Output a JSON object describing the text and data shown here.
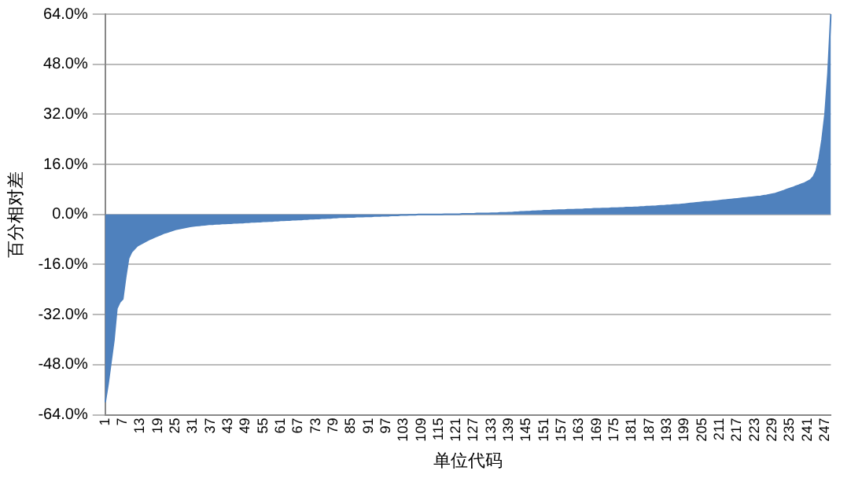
{
  "chart_data": {
    "type": "area",
    "xlabel": "单位代码",
    "ylabel": "百分相对差",
    "categories": [
      "1",
      null,
      null,
      null,
      null,
      null,
      "7",
      null,
      null,
      null,
      null,
      null,
      "13",
      null,
      null,
      null,
      null,
      null,
      "19",
      null,
      null,
      null,
      null,
      null,
      "25",
      null,
      null,
      null,
      null,
      null,
      "31",
      null,
      null,
      null,
      null,
      null,
      "37",
      null,
      null,
      null,
      null,
      null,
      "43",
      null,
      null,
      null,
      null,
      null,
      "49",
      null,
      null,
      null,
      null,
      null,
      "55",
      null,
      null,
      null,
      null,
      null,
      "61",
      null,
      null,
      null,
      null,
      null,
      "67",
      null,
      null,
      null,
      null,
      null,
      "73",
      null,
      null,
      null,
      null,
      null,
      "79",
      null,
      null,
      null,
      null,
      null,
      "85",
      null,
      null,
      null,
      null,
      null,
      "91",
      null,
      null,
      null,
      null,
      null,
      "97",
      null,
      null,
      null,
      null,
      null,
      "103",
      null,
      null,
      null,
      null,
      null,
      "109",
      null,
      null,
      null,
      null,
      null,
      "115",
      null,
      null,
      null,
      null,
      null,
      "121",
      null,
      null,
      null,
      null,
      null,
      "127",
      null,
      null,
      null,
      null,
      null,
      "133",
      null,
      null,
      null,
      null,
      null,
      "139",
      null,
      null,
      null,
      null,
      null,
      "145",
      null,
      null,
      null,
      null,
      null,
      "151",
      null,
      null,
      null,
      null,
      null,
      "157",
      null,
      null,
      null,
      null,
      null,
      "163",
      null,
      null,
      null,
      null,
      null,
      "169",
      null,
      null,
      null,
      null,
      null,
      "175",
      null,
      null,
      null,
      null,
      null,
      "181",
      null,
      null,
      null,
      null,
      null,
      "187",
      null,
      null,
      null,
      null,
      null,
      "193",
      null,
      null,
      null,
      null,
      null,
      "199",
      null,
      null,
      null,
      null,
      null,
      "205",
      null,
      null,
      null,
      null,
      null,
      "211",
      null,
      null,
      null,
      null,
      null,
      "217",
      null,
      null,
      null,
      null,
      null,
      "223",
      null,
      null,
      null,
      null,
      null,
      "229",
      null,
      null,
      null,
      null,
      null,
      "235",
      null,
      null,
      null,
      null,
      null,
      "241",
      null,
      null,
      null,
      null,
      null,
      "247",
      null,
      null
    ],
    "series": [
      {
        "color": "#4f81bd",
        "values": [
          -60,
          -54,
          -47,
          -40,
          -30,
          -28,
          -27,
          -20,
          -14,
          -12,
          -11,
          -10,
          -9.5,
          -9,
          -8.5,
          -8,
          -7.6,
          -7.2,
          -6.8,
          -6.4,
          -6,
          -5.7,
          -5.4,
          -5.1,
          -4.8,
          -4.6,
          -4.4,
          -4.2,
          -4,
          -3.8,
          -3.7,
          -3.6,
          -3.5,
          -3.4,
          -3.3,
          -3.2,
          -3.1,
          -3.1,
          -3,
          -3,
          -2.9,
          -2.9,
          -2.8,
          -2.8,
          -2.7,
          -2.7,
          -2.6,
          -2.6,
          -2.5,
          -2.5,
          -2.4,
          -2.4,
          -2.3,
          -2.3,
          -2.2,
          -2.2,
          -2.1,
          -2.1,
          -2,
          -2,
          -1.9,
          -1.9,
          -1.8,
          -1.8,
          -1.7,
          -1.7,
          -1.6,
          -1.6,
          -1.5,
          -1.5,
          -1.4,
          -1.4,
          -1.3,
          -1.3,
          -1.2,
          -1.2,
          -1.1,
          -1.1,
          -1,
          -1,
          -0.9,
          -0.9,
          -0.9,
          -0.8,
          -0.8,
          -0.8,
          -0.7,
          -0.7,
          -0.7,
          -0.6,
          -0.6,
          -0.6,
          -0.5,
          -0.5,
          -0.5,
          -0.4,
          -0.4,
          -0.4,
          -0.3,
          -0.3,
          -0.3,
          -0.2,
          -0.2,
          -0.2,
          -0.1,
          -0.1,
          -0.1,
          0,
          0,
          0,
          0,
          0,
          0,
          0,
          0,
          0,
          0.1,
          0.1,
          0.1,
          0.1,
          0.1,
          0.1,
          0.2,
          0.2,
          0.2,
          0.2,
          0.2,
          0.3,
          0.3,
          0.3,
          0.3,
          0.3,
          0.4,
          0.4,
          0.4,
          0.5,
          0.5,
          0.5,
          0.6,
          0.6,
          0.7,
          0.7,
          0.8,
          0.8,
          0.9,
          0.9,
          1,
          1,
          1.1,
          1.1,
          1.2,
          1.2,
          1.2,
          1.3,
          1.3,
          1.4,
          1.4,
          1.4,
          1.5,
          1.5,
          1.5,
          1.6,
          1.6,
          1.6,
          1.7,
          1.7,
          1.7,
          1.8,
          1.8,
          1.8,
          1.9,
          1.9,
          1.9,
          2,
          2,
          2,
          2.1,
          2.1,
          2.2,
          2.2,
          2.2,
          2.3,
          2.3,
          2.4,
          2.4,
          2.5,
          2.5,
          2.6,
          2.6,
          2.7,
          2.8,
          2.8,
          2.9,
          2.9,
          3,
          3.1,
          3.1,
          3.2,
          3.3,
          3.4,
          3.5,
          3.6,
          3.7,
          3.8,
          3.9,
          4,
          4,
          4.1,
          4.2,
          4.3,
          4.4,
          4.5,
          4.6,
          4.7,
          4.8,
          4.9,
          5,
          5.1,
          5.2,
          5.3,
          5.4,
          5.5,
          5.6,
          5.7,
          5.8,
          6,
          6.1,
          6.3,
          6.5,
          6.7,
          7,
          7.3,
          7.6,
          8,
          8.3,
          8.6,
          9,
          9.3,
          9.7,
          10,
          10.5,
          11,
          12,
          14,
          18,
          24,
          32,
          45,
          64
        ]
      }
    ],
    "ylim": [
      -64,
      64
    ],
    "yticks": [
      {
        "value": -64,
        "label": "-64.0%"
      },
      {
        "value": -48,
        "label": "-48.0%"
      },
      {
        "value": -32,
        "label": "-32.0%"
      },
      {
        "value": -16,
        "label": "-16.0%"
      },
      {
        "value": 0,
        "label": "0.0%"
      },
      {
        "value": 16,
        "label": "16.0%"
      },
      {
        "value": 32,
        "label": "32.0%"
      },
      {
        "value": 48,
        "label": "48.0%"
      },
      {
        "value": 64,
        "label": "64.0%"
      }
    ],
    "grid": "y",
    "marker": "none"
  }
}
